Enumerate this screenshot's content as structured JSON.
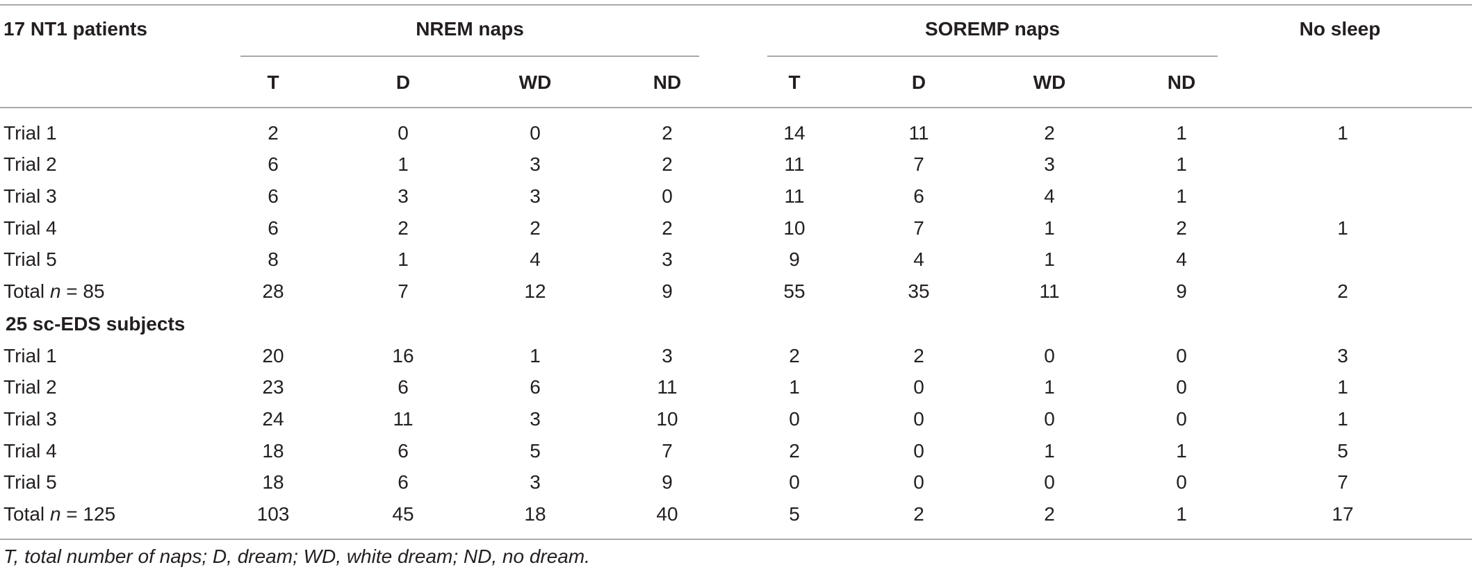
{
  "table": {
    "corner_label": "17 NT1 patients",
    "groups": [
      {
        "label": "NREM naps"
      },
      {
        "label": "SOREMP naps"
      },
      {
        "label": "No sleep"
      }
    ],
    "subheaders": [
      "T",
      "D",
      "WD",
      "ND",
      "T",
      "D",
      "WD",
      "ND"
    ],
    "sections": [
      {
        "title": "",
        "rows": [
          {
            "label": "Trial 1",
            "cells": [
              "2",
              "0",
              "0",
              "2",
              "14",
              "11",
              "2",
              "1",
              "1"
            ]
          },
          {
            "label": "Trial 2",
            "cells": [
              "6",
              "1",
              "3",
              "2",
              "11",
              "7",
              "3",
              "1",
              ""
            ]
          },
          {
            "label": "Trial 3",
            "cells": [
              "6",
              "3",
              "3",
              "0",
              "11",
              "6",
              "4",
              "1",
              ""
            ]
          },
          {
            "label": "Trial 4",
            "cells": [
              "6",
              "2",
              "2",
              "2",
              "10",
              "7",
              "1",
              "2",
              "1"
            ]
          },
          {
            "label": "Trial 5",
            "cells": [
              "8",
              "1",
              "4",
              "3",
              "9",
              "4",
              "1",
              "4",
              ""
            ]
          },
          {
            "label_prefix": "Total ",
            "label_italic": "n",
            "label_suffix": " = 85",
            "cells": [
              "28",
              "7",
              "12",
              "9",
              "55",
              "35",
              "11",
              "9",
              "2"
            ]
          }
        ]
      },
      {
        "title": "25 sc-EDS subjects",
        "rows": [
          {
            "label": "Trial 1",
            "cells": [
              "20",
              "16",
              "1",
              "3",
              "2",
              "2",
              "0",
              "0",
              "3"
            ]
          },
          {
            "label": "Trial 2",
            "cells": [
              "23",
              "6",
              "6",
              "11",
              "1",
              "0",
              "1",
              "0",
              "1"
            ]
          },
          {
            "label": "Trial 3",
            "cells": [
              "24",
              "11",
              "3",
              "10",
              "0",
              "0",
              "0",
              "0",
              "1"
            ]
          },
          {
            "label": "Trial 4",
            "cells": [
              "18",
              "6",
              "5",
              "7",
              "2",
              "0",
              "1",
              "1",
              "5"
            ]
          },
          {
            "label": "Trial 5",
            "cells": [
              "18",
              "6",
              "3",
              "9",
              "0",
              "0",
              "0",
              "0",
              "7"
            ]
          },
          {
            "label_prefix": "Total ",
            "label_italic": "n",
            "label_suffix": " = 125",
            "cells": [
              "103",
              "45",
              "18",
              "40",
              "5",
              "2",
              "2",
              "1",
              "17"
            ]
          }
        ]
      }
    ],
    "footnote": "T, total number of naps; D, dream; WD, white dream; ND, no dream."
  }
}
